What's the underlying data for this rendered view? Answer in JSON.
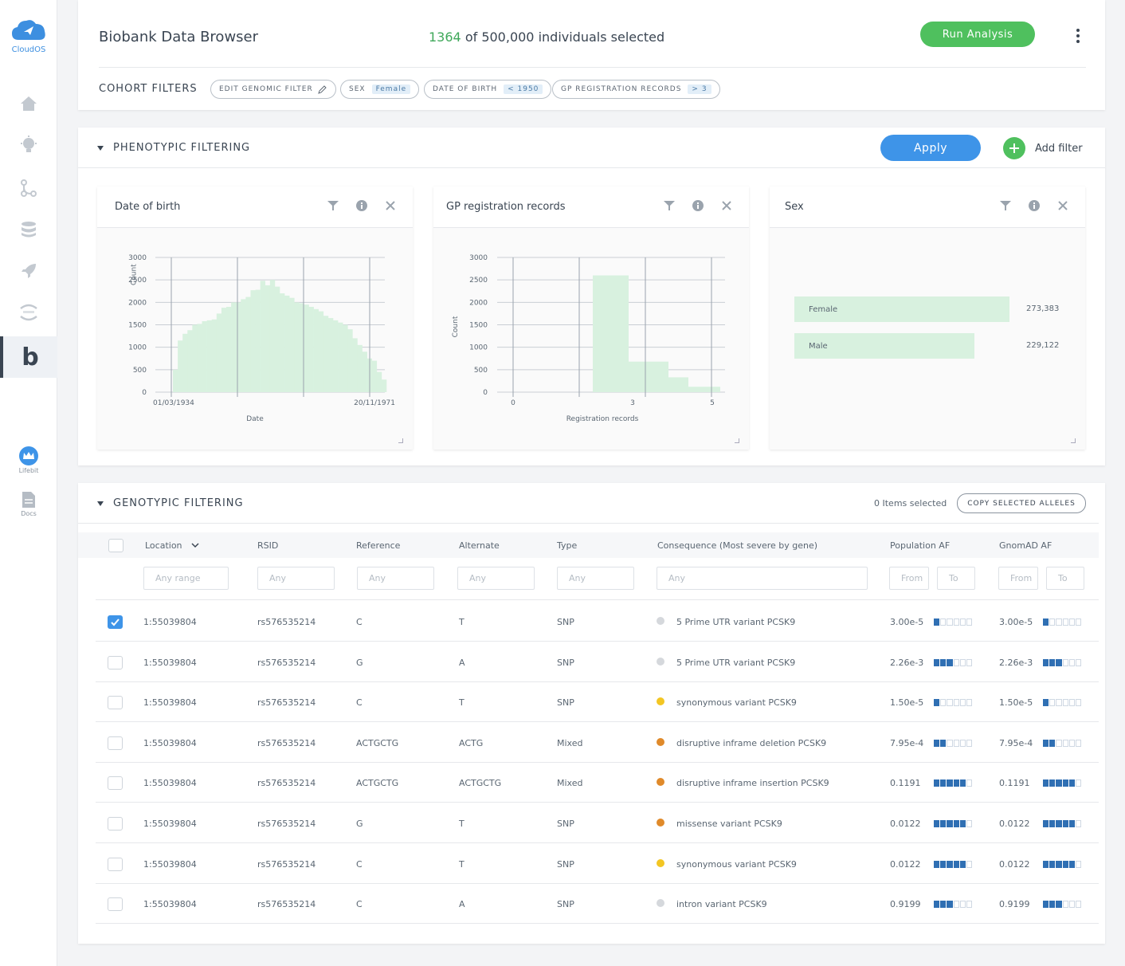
{
  "sidebar": {
    "logo_text": "CloudOS",
    "nav_icons": [
      "home-icon",
      "bulb-icon",
      "pipeline-icon",
      "database-icon",
      "rocket-icon",
      "jupyter-icon"
    ],
    "active_letter": "b",
    "lifebit_label": "Lifebit",
    "docs_label": "Docs"
  },
  "header": {
    "title": "Biobank Data Browser",
    "selected_count": "1364",
    "selected_suffix": "of 500,000 individuals selected",
    "run_button": "Run Analysis",
    "cohort_label": "COHORT FILTERS",
    "chips": [
      {
        "label": "EDIT GENOMIC FILTER",
        "tag": ""
      },
      {
        "label": "SEX",
        "tag": "Female"
      },
      {
        "label": "DATE OF BIRTH",
        "tag": "< 1950"
      },
      {
        "label": "GP REGISTRATION RECORDS",
        "tag": "> 3"
      }
    ]
  },
  "phenotypic": {
    "title": "PHENOTYPIC FILTERING",
    "apply": "Apply",
    "add_filter": "Add filter",
    "panels": {
      "dob": {
        "title": "Date of birth"
      },
      "gp": {
        "title": "GP registration records"
      },
      "sex": {
        "title": "Sex"
      }
    }
  },
  "chart_data": [
    {
      "type": "bar",
      "title": "Date of birth",
      "xlabel": "Date",
      "ylabel": "Count",
      "ylim": [
        0,
        3000
      ],
      "yticks": [
        0,
        500,
        1000,
        1500,
        2000,
        2500,
        3000
      ],
      "xtick_labels": [
        "01/03/1934",
        "20/11/1971"
      ],
      "values": [
        500,
        1150,
        1300,
        1380,
        1500,
        1520,
        1580,
        1600,
        1620,
        1750,
        1880,
        1900,
        2000,
        2000,
        2070,
        2120,
        2270,
        2280,
        2480,
        2380,
        2500,
        2350,
        2200,
        2150,
        2100,
        2000,
        1980,
        1950,
        1900,
        1850,
        1800,
        1700,
        1650,
        1600,
        1550,
        1500,
        1400,
        1200,
        1050,
        900,
        750,
        700,
        450,
        280
      ],
      "grid": true
    },
    {
      "type": "bar",
      "title": "GP registration records",
      "xlabel": "Registration records",
      "ylabel": "Count",
      "ylim": [
        0,
        3000
      ],
      "yticks": [
        0,
        500,
        1000,
        1500,
        2000,
        2500,
        3000
      ],
      "categories": [
        "0",
        "3",
        "5"
      ],
      "bins": [
        {
          "from": 2,
          "to": 2.9,
          "value": 2600
        },
        {
          "from": 2.9,
          "to": 3.9,
          "value": 680
        },
        {
          "from": 3.9,
          "to": 4.4,
          "value": 330
        },
        {
          "from": 4.4,
          "to": 5.2,
          "value": 120
        }
      ],
      "xlim": [
        0,
        5.5
      ],
      "grid": true
    },
    {
      "type": "bar",
      "title": "Sex",
      "categories": [
        "Female",
        "Male"
      ],
      "values": [
        273383,
        229122
      ],
      "value_labels": [
        "273,383",
        "229,122"
      ]
    }
  ],
  "genotypic": {
    "title": "GENOTYPIC FILTERING",
    "items_selected": "0 Items selected",
    "copy_button": "COPY SELECTED ALLELES",
    "columns": [
      "Location",
      "RSID",
      "Reference",
      "Alternate",
      "Type",
      "Consequence (Most severe by gene)",
      "Population AF",
      "GnomAD AF"
    ],
    "filters": {
      "location": "Any range",
      "rsid": "Any",
      "reference": "Any",
      "alternate": "Any",
      "type": "Any",
      "consequence": "Any",
      "pop_from": "From",
      "pop_to": "To",
      "gnomad_from": "From",
      "gnomad_to": "To"
    },
    "colors": {
      "grey": "#d5d8dc",
      "yellow": "#f3c623",
      "orange": "#e08a2a"
    },
    "rows": [
      {
        "checked": true,
        "location": "1:55039804",
        "rsid": "rs576535214",
        "ref": "C",
        "alt": "T",
        "type": "SNP",
        "dot": "grey",
        "consequence": "5 Prime UTR variant PCSK9",
        "pop_af": "3.00e-5",
        "pop_level": 1,
        "gnomad_af": "3.00e-5",
        "gnomad_level": 1
      },
      {
        "checked": false,
        "location": "1:55039804",
        "rsid": "rs576535214",
        "ref": "G",
        "alt": "A",
        "type": "SNP",
        "dot": "grey",
        "consequence": "5 Prime UTR variant PCSK9",
        "pop_af": "2.26e-3",
        "pop_level": 3,
        "gnomad_af": "2.26e-3",
        "gnomad_level": 3
      },
      {
        "checked": false,
        "location": "1:55039804",
        "rsid": "rs576535214",
        "ref": "C",
        "alt": "T",
        "type": "SNP",
        "dot": "yellow",
        "consequence": "synonymous variant PCSK9",
        "pop_af": "1.50e-5",
        "pop_level": 1,
        "gnomad_af": "1.50e-5",
        "gnomad_level": 1
      },
      {
        "checked": false,
        "location": "1:55039804",
        "rsid": "rs576535214",
        "ref": "ACTGCTG",
        "alt": "ACTG",
        "type": "Mixed",
        "dot": "orange",
        "consequence": "disruptive inframe deletion PCSK9",
        "pop_af": "7.95e-4",
        "pop_level": 2,
        "gnomad_af": "7.95e-4",
        "gnomad_level": 2
      },
      {
        "checked": false,
        "location": "1:55039804",
        "rsid": "rs576535214",
        "ref": "ACTGCTG",
        "alt": "ACTGCTG",
        "type": "Mixed",
        "dot": "orange",
        "consequence": "disruptive inframe insertion PCSK9",
        "pop_af": "0.1191",
        "pop_level": 5,
        "gnomad_af": "0.1191",
        "gnomad_level": 5
      },
      {
        "checked": false,
        "location": "1:55039804",
        "rsid": "rs576535214",
        "ref": "G",
        "alt": "T",
        "type": "SNP",
        "dot": "orange",
        "consequence": "missense variant PCSK9",
        "pop_af": "0.0122",
        "pop_level": 5,
        "gnomad_af": "0.0122",
        "gnomad_level": 5
      },
      {
        "checked": false,
        "location": "1:55039804",
        "rsid": "rs576535214",
        "ref": "C",
        "alt": "T",
        "type": "SNP",
        "dot": "yellow",
        "consequence": "synonymous variant PCSK9",
        "pop_af": "0.0122",
        "pop_level": 5,
        "gnomad_af": "0.0122",
        "gnomad_level": 5
      },
      {
        "checked": false,
        "location": "1:55039804",
        "rsid": "rs576535214",
        "ref": "C",
        "alt": "A",
        "type": "SNP",
        "dot": "grey",
        "consequence": "intron variant PCSK9",
        "pop_af": "0.9199",
        "pop_level": 3,
        "gnomad_af": "0.9199",
        "gnomad_level": 3
      }
    ]
  }
}
